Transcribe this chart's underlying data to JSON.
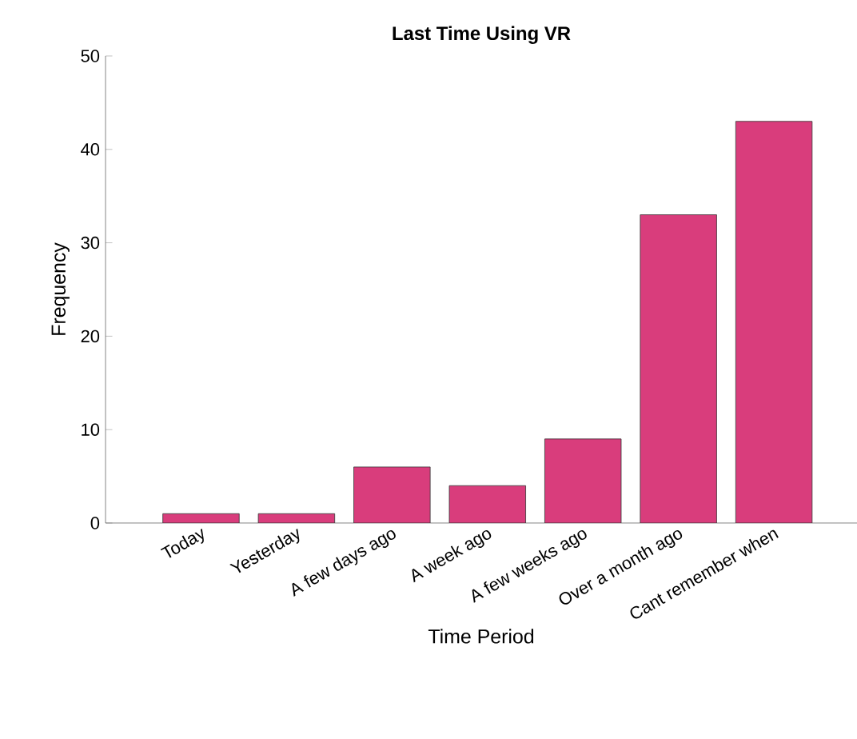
{
  "chart_data": {
    "type": "bar",
    "title": "Last Time Using VR",
    "xlabel": "Time Period",
    "ylabel": "Frequency",
    "categories": [
      "Today",
      "Yesterday",
      "A few days ago",
      "A week ago",
      "A few weeks ago",
      "Over a month ago",
      "Cant remember when"
    ],
    "values": [
      1,
      1,
      6,
      4,
      9,
      33,
      43
    ],
    "color": "#d93d7c",
    "ylim": [
      0,
      50
    ],
    "yticks": [
      0,
      10,
      20,
      30,
      40,
      50
    ],
    "grid": false
  }
}
